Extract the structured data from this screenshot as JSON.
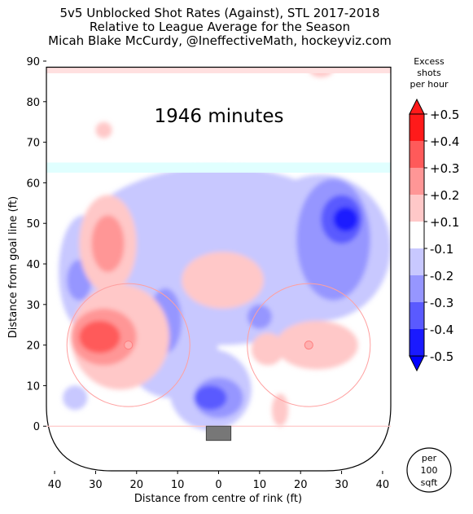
{
  "header": {
    "title_line1": "5v5 Unblocked Shot Rates (Against), STL 2017-2018",
    "title_line2": "Relative to League Average for the Season",
    "title_line3": "Micah Blake McCurdy, @IneffectiveMath, hockeyviz.com"
  },
  "chart_data": {
    "type": "heatmap",
    "annotation": "1946 minutes",
    "xlabel": "Distance from centre of rink (ft)",
    "ylabel": "Distance from goal line (ft)",
    "xlim": [
      -42,
      42
    ],
    "ylim": [
      -11,
      90
    ],
    "x_ticks": [
      "40",
      "30",
      "20",
      "10",
      "0",
      "10",
      "20",
      "30",
      "40"
    ],
    "x_tick_values": [
      -40,
      -30,
      -20,
      -10,
      0,
      10,
      20,
      30,
      40
    ],
    "y_ticks": [
      "0",
      "10",
      "20",
      "30",
      "40",
      "50",
      "60",
      "70",
      "80",
      "90"
    ],
    "y_tick_values": [
      0,
      10,
      20,
      30,
      40,
      50,
      60,
      70,
      80,
      90
    ],
    "colorbar": {
      "title_lines": [
        "Excess",
        "shots",
        "per hour"
      ],
      "labels": [
        "+0.5",
        "+0.4",
        "+0.3",
        "+0.2",
        "+0.1",
        "-0.1",
        "-0.2",
        "-0.3",
        "-0.4",
        "-0.5"
      ],
      "colors": [
        "#ff1a1a",
        "#ff5a5a",
        "#ff9696",
        "#ffc8c8",
        "#ffffff",
        "#c8c8ff",
        "#9696ff",
        "#5a5aff",
        "#1a1aff"
      ],
      "extend_top_color": "#ff1a1a",
      "extend_bottom_color": "#0000ff"
    },
    "unit_badge": [
      "per",
      "100",
      "sqft"
    ],
    "regions": [
      {
        "level": -0.1,
        "cx": 0,
        "cy": 42,
        "rx": 36,
        "ry": 22
      },
      {
        "level": -0.1,
        "cx": -33,
        "cy": 38,
        "rx": 6,
        "ry": 14
      },
      {
        "level": -0.1,
        "cx": 25,
        "cy": 44,
        "rx": 17,
        "ry": 18
      },
      {
        "level": -0.1,
        "cx": -12,
        "cy": 22,
        "rx": 12,
        "ry": 15
      },
      {
        "level": -0.1,
        "cx": -2,
        "cy": 9,
        "rx": 10,
        "ry": 10
      },
      {
        "level": -0.1,
        "cx": -35,
        "cy": 7,
        "rx": 3,
        "ry": 3
      },
      {
        "level": -0.2,
        "cx": 28,
        "cy": 46,
        "rx": 9,
        "ry": 15
      },
      {
        "level": -0.2,
        "cx": -13,
        "cy": 26,
        "rx": 4,
        "ry": 8
      },
      {
        "level": -0.2,
        "cx": 10,
        "cy": 27,
        "rx": 3,
        "ry": 3
      },
      {
        "level": -0.2,
        "cx": 0,
        "cy": 7,
        "rx": 6,
        "ry": 5
      },
      {
        "level": -0.2,
        "cx": -34,
        "cy": 36,
        "rx": 3,
        "ry": 5
      },
      {
        "level": -0.3,
        "cx": 30,
        "cy": 51,
        "rx": 5,
        "ry": 6
      },
      {
        "level": -0.3,
        "cx": -2,
        "cy": 7,
        "rx": 4,
        "ry": 3
      },
      {
        "level": -0.4,
        "cx": 31,
        "cy": 51,
        "rx": 3,
        "ry": 3
      },
      {
        "level": 0.1,
        "cx": -24,
        "cy": 22,
        "rx": 12,
        "ry": 13
      },
      {
        "level": 0.1,
        "cx": -27,
        "cy": 45,
        "rx": 7,
        "ry": 12
      },
      {
        "level": 0.1,
        "cx": 1,
        "cy": 36,
        "rx": 10,
        "ry": 7
      },
      {
        "level": 0.1,
        "cx": 24,
        "cy": 20,
        "rx": 10,
        "ry": 6
      },
      {
        "level": 0.1,
        "cx": 12,
        "cy": 19,
        "rx": 4,
        "ry": 4
      },
      {
        "level": 0.1,
        "cx": 15,
        "cy": 4,
        "rx": 2,
        "ry": 4
      },
      {
        "level": 0.1,
        "cx": 25,
        "cy": 88,
        "rx": 3,
        "ry": 2
      },
      {
        "level": 0.1,
        "cx": -28,
        "cy": 73,
        "rx": 2,
        "ry": 2
      },
      {
        "level": 0.2,
        "cx": -27,
        "cy": 45,
        "rx": 4,
        "ry": 7
      },
      {
        "level": 0.2,
        "cx": -28,
        "cy": 22,
        "rx": 8,
        "ry": 7
      },
      {
        "level": 0.3,
        "cx": -29,
        "cy": 22,
        "rx": 5,
        "ry": 4
      }
    ]
  }
}
